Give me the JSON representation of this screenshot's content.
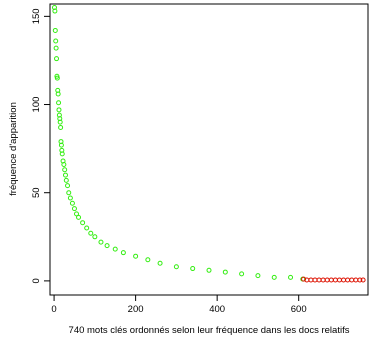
{
  "chart_data": {
    "type": "scatter",
    "title": "",
    "xlabel": "740 mots clés ordonnés selon leur fréquence dans les docs relatifs",
    "ylabel": "fréquence d'apparition",
    "xlim": [
      -10,
      770
    ],
    "ylim": [
      -8,
      157
    ],
    "x_ticks": [
      0,
      200,
      400,
      600
    ],
    "y_ticks": [
      0,
      50,
      100,
      150
    ],
    "grid": false,
    "legend": "none",
    "marker": "open-circle",
    "colors": {
      "green_points": "#33ee11",
      "red_points": "#dd1100",
      "axis": "#000000"
    },
    "series": [
      {
        "color": "green",
        "x": [
          1,
          2,
          3,
          4,
          5,
          6,
          7,
          8,
          9,
          10,
          11,
          12,
          13,
          14,
          15,
          16,
          17,
          18,
          19,
          20,
          22,
          24,
          26,
          28,
          30,
          33,
          36,
          40,
          45,
          50,
          55,
          60,
          70,
          80,
          90,
          100,
          115,
          130,
          150,
          170,
          200,
          230,
          260,
          300,
          340,
          380,
          420,
          460,
          500,
          540,
          580,
          610
        ],
        "y": [
          155,
          153,
          142,
          136,
          132,
          126,
          116,
          115,
          108,
          106,
          101,
          97,
          94,
          92,
          90,
          87,
          79,
          77,
          74,
          72,
          68,
          66,
          63,
          60,
          57,
          54,
          50,
          47,
          44,
          41,
          38,
          36,
          33,
          30,
          27,
          25,
          22,
          20,
          18,
          16,
          14,
          12,
          10,
          8,
          7,
          6,
          5,
          4,
          3,
          2,
          2,
          1
        ]
      },
      {
        "color": "red",
        "x": [
          612,
          620,
          630,
          640,
          650,
          660,
          670,
          680,
          690,
          700,
          710,
          720,
          730,
          740,
          750,
          758
        ],
        "y": [
          1,
          0.5,
          0.5,
          0.5,
          0.5,
          0.5,
          0.5,
          0.5,
          0.5,
          0.5,
          0.5,
          0.5,
          0.5,
          0.5,
          0.5,
          0.5
        ]
      }
    ]
  }
}
